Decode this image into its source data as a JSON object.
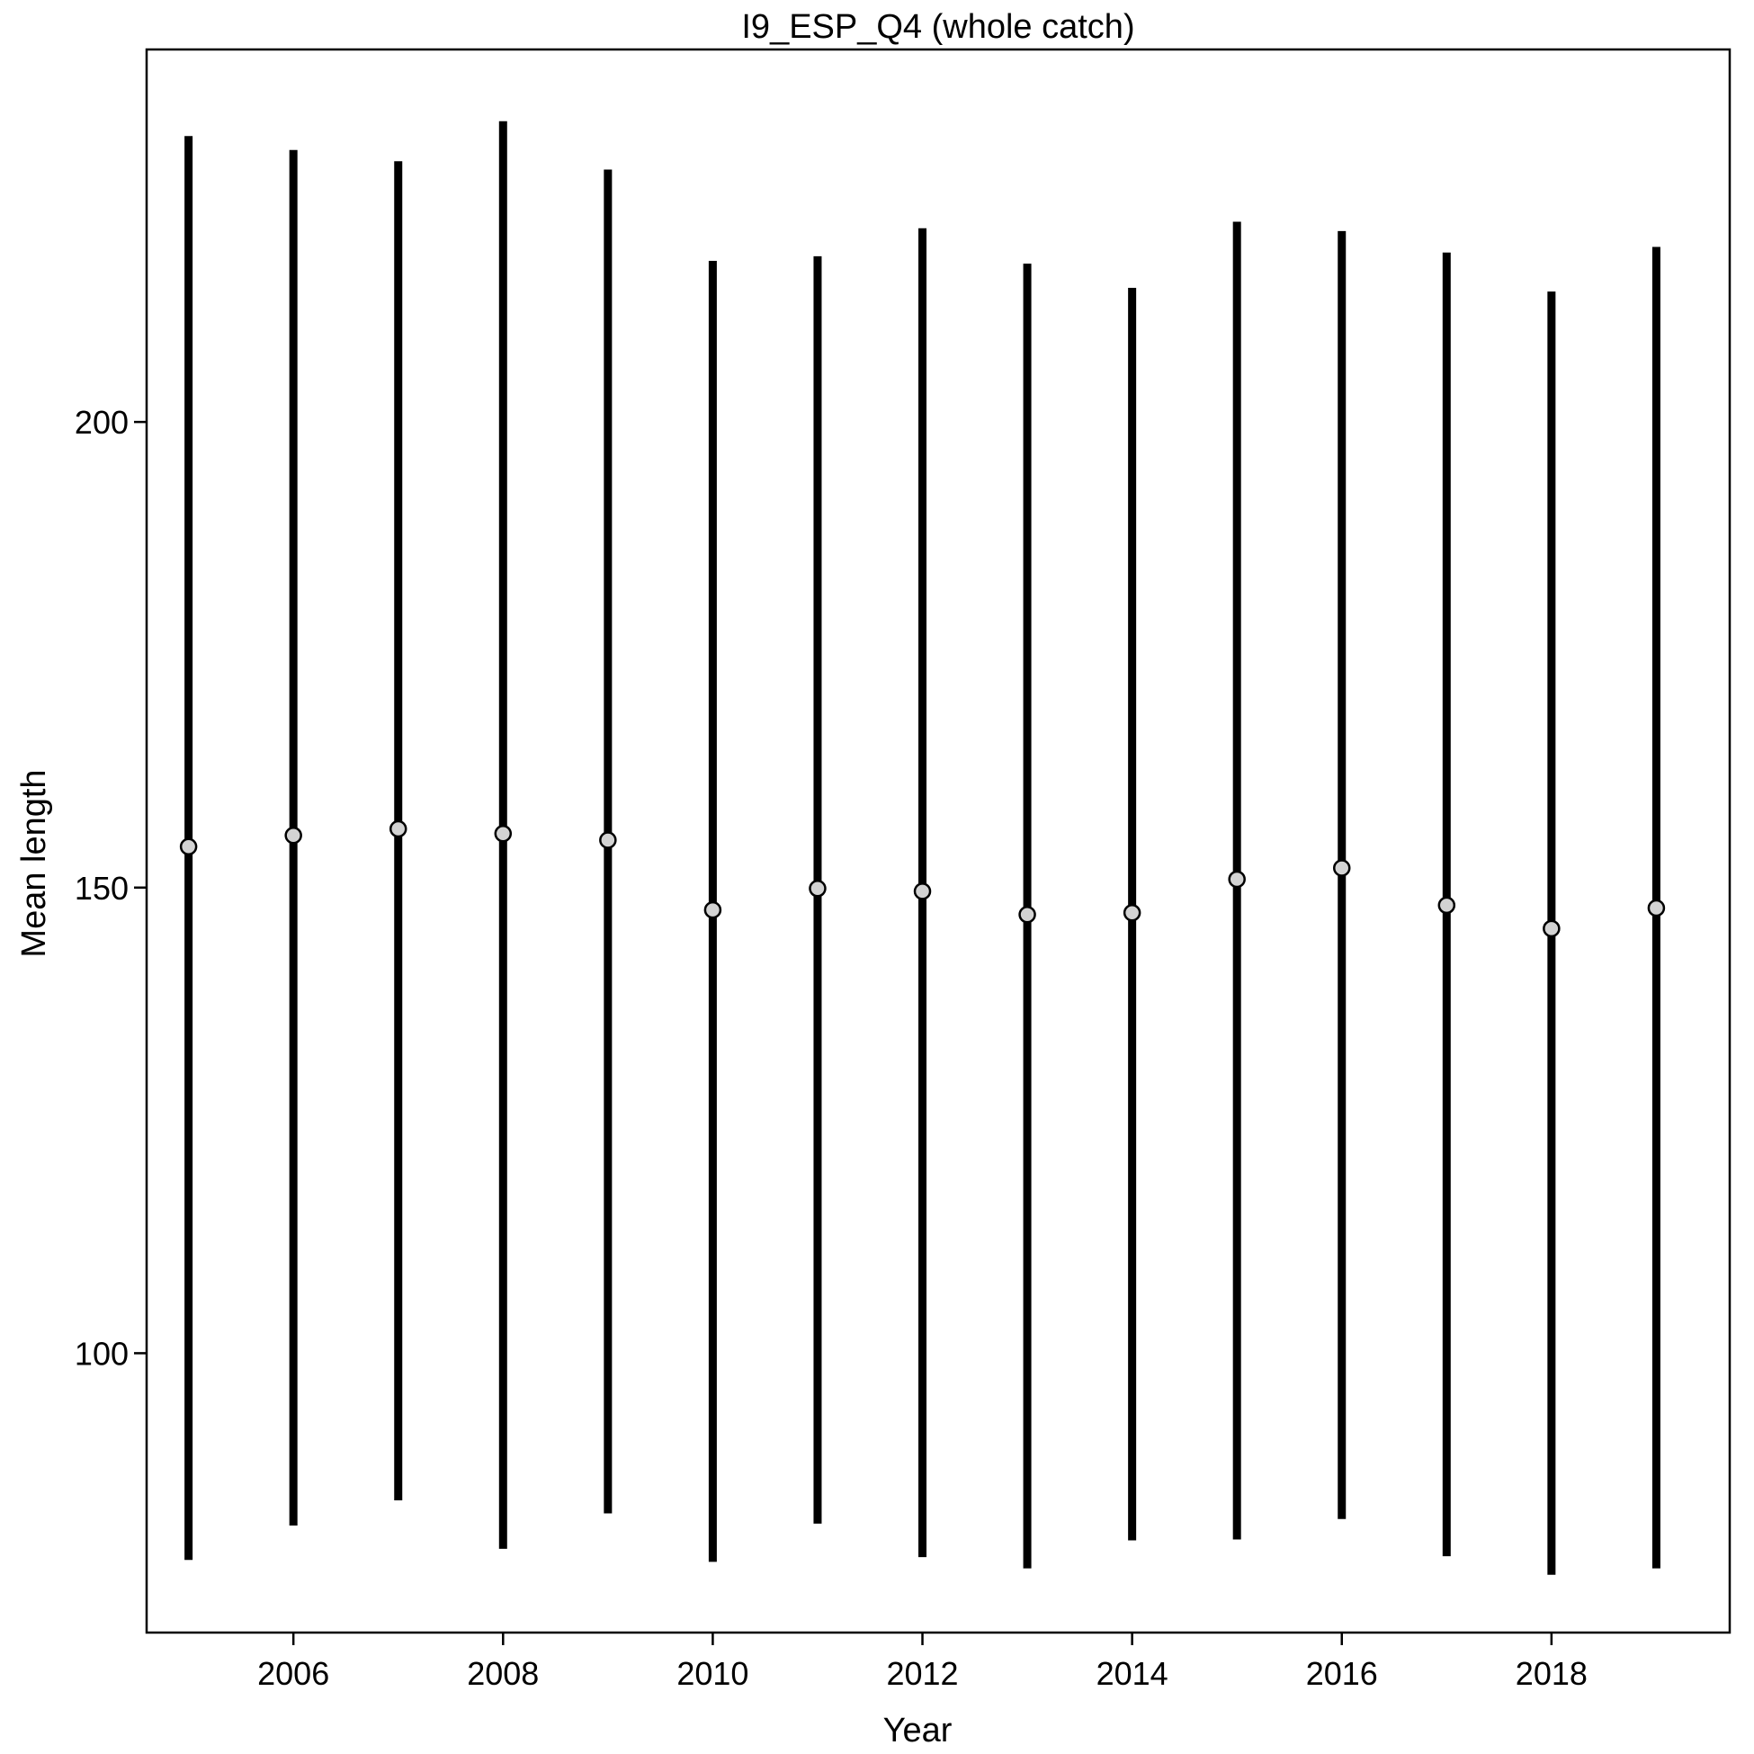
{
  "chart_data": {
    "type": "errorbar",
    "title": "I9_ESP_Q4 (whole catch)",
    "xlabel": "Year",
    "ylabel": "Mean length",
    "xlim": [
      2004.6,
      2019.7
    ],
    "ylim": [
      70,
      240
    ],
    "x_ticks": [
      2006,
      2008,
      2010,
      2012,
      2014,
      2016,
      2018
    ],
    "y_ticks": [
      100,
      150,
      200
    ],
    "grid": false,
    "marker_fill": "#d3d3d3",
    "bar_color": "#000000",
    "points": [
      {
        "x": 2005,
        "mean": 154.4,
        "low": 77.8,
        "high": 230.7
      },
      {
        "x": 2006,
        "mean": 155.6,
        "low": 81.5,
        "high": 229.2
      },
      {
        "x": 2007,
        "mean": 156.3,
        "low": 84.2,
        "high": 228.0
      },
      {
        "x": 2008,
        "mean": 155.8,
        "low": 79.0,
        "high": 232.3
      },
      {
        "x": 2009,
        "mean": 155.1,
        "low": 82.8,
        "high": 227.1
      },
      {
        "x": 2010,
        "mean": 147.6,
        "low": 77.6,
        "high": 217.3
      },
      {
        "x": 2011,
        "mean": 149.9,
        "low": 81.7,
        "high": 217.8
      },
      {
        "x": 2012,
        "mean": 149.6,
        "low": 78.1,
        "high": 220.8
      },
      {
        "x": 2013,
        "mean": 147.1,
        "low": 76.9,
        "high": 217.0
      },
      {
        "x": 2014,
        "mean": 147.3,
        "low": 79.9,
        "high": 214.4
      },
      {
        "x": 2015,
        "mean": 150.9,
        "low": 80.0,
        "high": 221.5
      },
      {
        "x": 2016,
        "mean": 152.1,
        "low": 82.2,
        "high": 220.5
      },
      {
        "x": 2017,
        "mean": 148.1,
        "low": 78.2,
        "high": 218.2
      },
      {
        "x": 2018,
        "mean": 145.6,
        "low": 76.2,
        "high": 214.0
      },
      {
        "x": 2019,
        "mean": 147.8,
        "low": 76.9,
        "high": 218.8
      }
    ]
  }
}
